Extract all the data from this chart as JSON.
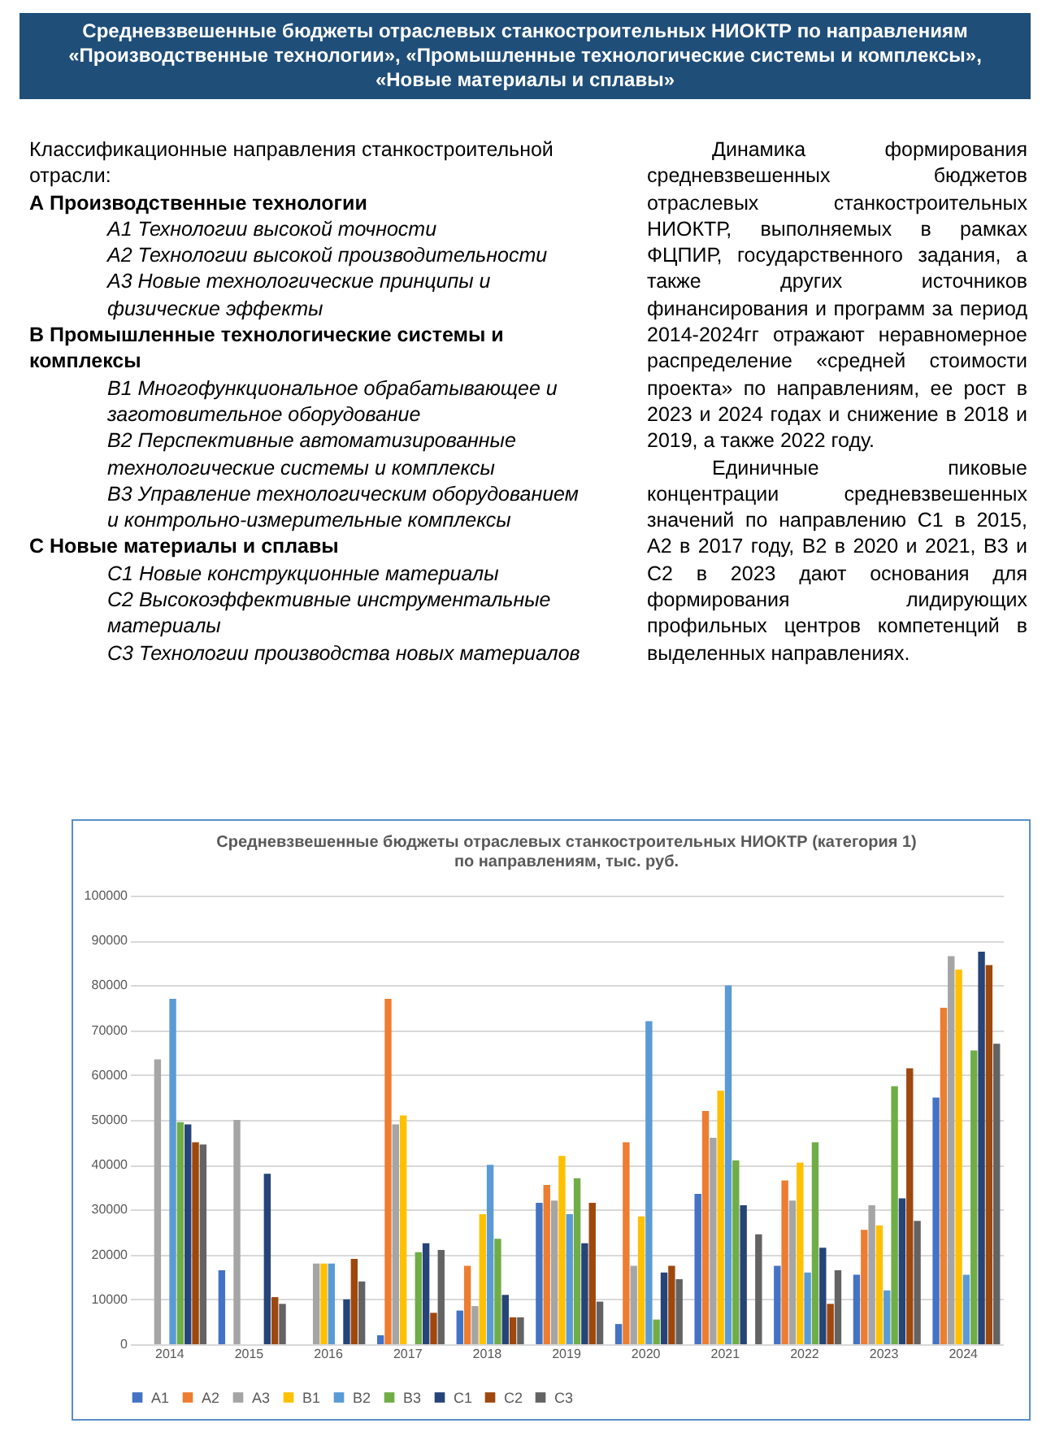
{
  "chart_data": {
    "type": "bar",
    "title": "Средневзвешенные бюджеты отраслевых станкостроительных НИОКТР (категория 1)\nпо направлениям, тыс. руб.",
    "subtitle": "Средневзвешенные бюджеты отраслевых станкостроительных НИОКТР по направлениям «Производственные технологии», «Промышленные технологические системы и комплексы», «Новые материалы и сплавы»",
    "annotations": [
      "Классификационные направления станкостроительной отрасли:",
      "А Производственные технологии",
      "А1 Технологии высокой точности",
      "А2 Технологии высокой производительности",
      "А3 Новые технологические принципы и физические эффекты",
      "В Промышленные технологические системы и комплексы",
      "В1 Многофункциональное обрабатывающее и заготовительное оборудование",
      "В2 Перспективные автоматизированные технологические системы и комплексы",
      "В3 Управление технологическим оборудованием и контрольно-измерительные комплексы",
      "С Новые материалы и сплавы",
      "С1 Новые конструкционные материалы",
      "С2 Высокоэффективные инструментальные материалы",
      "С3 Технологии производства новых материалов",
      "Динамика формирования средневзвешенных бюджетов отраслевых станкостроительных НИОКТР, выполняемых в рамках ФЦПИР, государственного задания, а также других источников финансирования и программ за период 2014-2024гг отражают неравномерное распределение «средней стоимости проекта» по направлениям, ее рост в 2023 и 2024 годах и снижение в 2018 и 2019, а также 2022 году.",
      "Единичные пиковые концентрации средневзвешенных значений по направлению С1 в 2015, А2 в 2017 году, В2 в 2020 и 2021, В3 и С2 в 2023 дают основания для формирования лидирующих профильных центров компетенций в выделенных направлениях."
    ],
    "categories": [
      "2014",
      "2015",
      "2016",
      "2017",
      "2018",
      "2019",
      "2020",
      "2021",
      "2022",
      "2023",
      "2024"
    ],
    "series": [
      {
        "name": "A1",
        "color": "#4472c4",
        "values": [
          null,
          16500,
          null,
          2000,
          7500,
          31500,
          4500,
          33500,
          17500,
          15500,
          55000
        ]
      },
      {
        "name": "A2",
        "color": "#ed7d31",
        "values": [
          null,
          null,
          null,
          77000,
          17500,
          35500,
          45000,
          52000,
          36500,
          25500,
          75000
        ]
      },
      {
        "name": "A3",
        "color": "#a5a5a5",
        "values": [
          63500,
          50000,
          18000,
          49000,
          8500,
          32000,
          17500,
          46000,
          32000,
          31000,
          86500
        ]
      },
      {
        "name": "B1",
        "color": "#ffc000",
        "values": [
          null,
          null,
          18000,
          51000,
          29000,
          42000,
          28500,
          56500,
          40500,
          26500,
          83500
        ]
      },
      {
        "name": "B2",
        "color": "#5b9bd5",
        "values": [
          77000,
          null,
          18000,
          null,
          40000,
          29000,
          72000,
          80000,
          16000,
          12000,
          15500
        ]
      },
      {
        "name": "B3",
        "color": "#70ad47",
        "values": [
          49500,
          null,
          null,
          20500,
          23500,
          37000,
          5500,
          41000,
          45000,
          57500,
          65500
        ]
      },
      {
        "name": "C1",
        "color": "#264478",
        "values": [
          49000,
          38000,
          10000,
          22500,
          11000,
          22500,
          16000,
          31000,
          21500,
          32500,
          87500
        ]
      },
      {
        "name": "C2",
        "color": "#9e480e",
        "values": [
          45000,
          10500,
          19000,
          7000,
          6000,
          31500,
          17500,
          null,
          9000,
          61500,
          84500
        ]
      },
      {
        "name": "C3",
        "color": "#636363",
        "values": [
          44500,
          9000,
          14000,
          21000,
          6000,
          9500,
          14500,
          24500,
          16500,
          27500,
          67000
        ]
      }
    ],
    "ylim": [
      0,
      100000
    ],
    "yticks": [
      0,
      10000,
      20000,
      30000,
      40000,
      50000,
      60000,
      70000,
      80000,
      90000,
      100000
    ],
    "grid": "y",
    "legend": "bottom"
  }
}
